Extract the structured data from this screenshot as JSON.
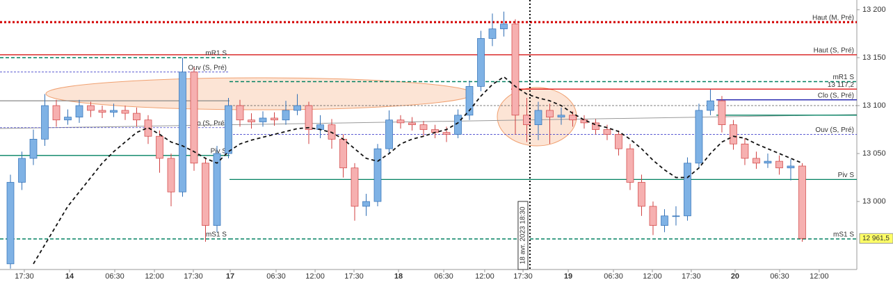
{
  "chart_data": {
    "type": "candlestick",
    "xlim": [
      -0.91,
      73.76
    ],
    "ylim": [
      12929.1,
      13210.1
    ],
    "yticks": [
      {
        "value": 13000,
        "label": "13 000"
      },
      {
        "value": 13050,
        "label": "13 050"
      },
      {
        "value": 13100,
        "label": "13 100"
      },
      {
        "value": 13150,
        "label": "13 150"
      },
      {
        "value": 13200,
        "label": "13 200"
      }
    ],
    "xticks": [
      {
        "value": 1.21,
        "label": "17:30"
      },
      {
        "value": 5.15,
        "label": "14"
      },
      {
        "value": 9.09,
        "label": "06:30"
      },
      {
        "value": 12.55,
        "label": "12:00"
      },
      {
        "value": 15.94,
        "label": "17:30"
      },
      {
        "value": 19.15,
        "label": "17"
      },
      {
        "value": 23.15,
        "label": "06:30"
      },
      {
        "value": 26.55,
        "label": "12:00"
      },
      {
        "value": 29.94,
        "label": "17:30"
      },
      {
        "value": 33.82,
        "label": "18"
      },
      {
        "value": 37.76,
        "label": "06:30"
      },
      {
        "value": 41.33,
        "label": "12:00"
      },
      {
        "value": 44.67,
        "label": "17:30"
      },
      {
        "value": 48.61,
        "label": "19"
      },
      {
        "value": 52.55,
        "label": "06:30"
      },
      {
        "value": 55.94,
        "label": "12:00"
      },
      {
        "value": 59.33,
        "label": "17:30"
      },
      {
        "value": 63.15,
        "label": "20"
      },
      {
        "value": 67.03,
        "label": "06:30"
      },
      {
        "value": 70.48,
        "label": "12:00"
      }
    ],
    "up_color": "#7fb2e5",
    "down_color": "#f6b0b0",
    "open": [
      12935,
      13020,
      13045,
      13065,
      13100,
      13085,
      13088,
      13100,
      13095,
      13093,
      13095,
      13092,
      13085,
      13068,
      13045,
      13010,
      13135,
      13040,
      12975,
      13050,
      13100,
      13085,
      13083,
      13087,
      13085,
      13095,
      13100,
      13075,
      13080,
      13065,
      13035,
      12995,
      13000,
      13055,
      13085,
      13082,
      13080,
      13075,
      13072,
      13070,
      13090,
      13120,
      13170,
      13180,
      13185,
      13090,
      13080,
      13095,
      13088,
      13090,
      13085,
      13082,
      13075,
      13070,
      13055,
      13020,
      12995,
      12975,
      12985,
      12985,
      13040,
      13095,
      13105,
      13080,
      13060,
      13045,
      13040,
      13042,
      13035,
      13037
    ],
    "high": [
      13028,
      13052,
      13075,
      13112,
      13106,
      13096,
      13106,
      13104,
      13100,
      13102,
      13100,
      13098,
      13090,
      13074,
      13050,
      13150,
      13140,
      13046,
      13058,
      13108,
      13106,
      13092,
      13094,
      13093,
      13105,
      13112,
      13104,
      13090,
      13086,
      13070,
      13040,
      13008,
      13060,
      13095,
      13090,
      13088,
      13084,
      13080,
      13078,
      13096,
      13126,
      13178,
      13196,
      13198,
      13190,
      13108,
      13104,
      13102,
      13098,
      13094,
      13090,
      13086,
      13080,
      13074,
      13060,
      13028,
      13000,
      12992,
      12995,
      13046,
      13102,
      13117,
      13110,
      13085,
      13066,
      13052,
      13050,
      13048,
      13044,
      13040
    ],
    "low": [
      12930,
      13012,
      13038,
      13058,
      13078,
      13080,
      13082,
      13088,
      13087,
      13088,
      13085,
      13078,
      13060,
      13030,
      12995,
      13005,
      13032,
      12958,
      12968,
      13045,
      13078,
      13076,
      13078,
      13079,
      13080,
      13090,
      13060,
      13066,
      13055,
      13025,
      12980,
      12985,
      12995,
      13050,
      13076,
      13074,
      13068,
      13066,
      13062,
      13066,
      13085,
      13115,
      13162,
      13172,
      13070,
      13062,
      13064,
      13060,
      13080,
      13078,
      13076,
      13070,
      13064,
      13048,
      13012,
      12985,
      12965,
      12968,
      12975,
      12980,
      13035,
      13090,
      13072,
      13054,
      13038,
      13034,
      13035,
      13028,
      13022,
      12958
    ],
    "close": [
      13020,
      13045,
      13065,
      13100,
      13085,
      13088,
      13100,
      13095,
      13093,
      13095,
      13092,
      13085,
      13068,
      13045,
      13010,
      13135,
      13040,
      12975,
      13050,
      13100,
      13085,
      13083,
      13087,
      13085,
      13095,
      13100,
      13075,
      13080,
      13065,
      13035,
      12995,
      13000,
      13055,
      13085,
      13082,
      13080,
      13075,
      13072,
      13070,
      13090,
      13120,
      13170,
      13180,
      13185,
      13090,
      13080,
      13095,
      13088,
      13090,
      13085,
      13082,
      13075,
      13070,
      13055,
      13020,
      12995,
      12975,
      12985,
      12985,
      13040,
      13095,
      13105,
      13080,
      13060,
      13045,
      13040,
      13042,
      13035,
      13037,
      12961.5
    ],
    "ma": {
      "color": "#111111",
      "values": [
        null,
        null,
        12935,
        12955,
        12975,
        12995,
        13010,
        13025,
        13040,
        13052,
        13062,
        13072,
        13077,
        13070,
        13062,
        13058,
        13052,
        13045,
        13040,
        13052,
        13060,
        13064,
        13067,
        13070,
        13073,
        13076,
        13077,
        13075,
        13072,
        13065,
        13055,
        13045,
        13042,
        13050,
        13060,
        13065,
        13068,
        13072,
        13075,
        13082,
        13095,
        13110,
        13122,
        13130,
        13120,
        13112,
        13108,
        13105,
        13100,
        13092,
        13085,
        13080,
        13077,
        13073,
        13065,
        13055,
        13043,
        13033,
        13025,
        13025,
        13035,
        13050,
        13062,
        13068,
        13066,
        13060,
        13055,
        13050,
        13045,
        13040
      ]
    },
    "levels": [
      {
        "price": 13187,
        "label": "Haut (M, Pré)",
        "color": "#d40000",
        "label_color": "#3333cc",
        "style": "dotted",
        "from": -0.91,
        "to": 73.76
      },
      {
        "price": 13153,
        "label": "Haut (S, Pré)",
        "color": "#d40000",
        "label_color": "#3333cc",
        "style": "solid",
        "from": -0.91,
        "to": 73.76
      },
      {
        "price": 13150,
        "label": "mR1 S",
        "color": "#008060",
        "label_color": "#008060",
        "style": "dashed",
        "from": -0.91,
        "to": 19.09
      },
      {
        "price": 13135,
        "label": "Ouv (S, Pré)",
        "color": "#4444cc",
        "label_color": "#3333cc",
        "style": "thin",
        "from": -0.91,
        "to": 19.09
      },
      {
        "price": 13105,
        "color": "#888888",
        "style": "solid",
        "from": -0.91,
        "to": 19.09
      },
      {
        "price": 13125,
        "label": "mR1 S",
        "color": "#008060",
        "label_color": "#008060",
        "style": "dashed",
        "from": 19.09,
        "to": 73.76
      },
      {
        "price": 13117.2,
        "label": "13 117,2",
        "color": "#e00000",
        "label_color": "#e00000",
        "style": "solid",
        "from": 43.64,
        "to": 73.76
      },
      {
        "price": 13106,
        "label": "Clo (S, Pré)",
        "color": "#0000a0",
        "label_color": "#3333cc",
        "style": "solid",
        "from": 61.52,
        "to": 73.76
      },
      {
        "price": 13100,
        "color": "#555555",
        "style": "thin",
        "from": 19.09,
        "to": 73.76
      },
      {
        "price": 13090,
        "color": "#008060",
        "style": "solid",
        "from": 61.52,
        "to": 73.76
      },
      {
        "price": 13077,
        "label": "Clo (S, Pré)",
        "color": "#4444cc",
        "label_color": "#3333cc",
        "style": "thin",
        "from": -0.91,
        "to": 19.09
      },
      {
        "price": 13070,
        "label": "Ouv (S, Pré)",
        "color": "#4444cc",
        "label_color": "#3333cc",
        "style": "thin",
        "from": 19.09,
        "to": 73.76
      },
      {
        "price": 13048,
        "label": "Piv S",
        "color": "#008060",
        "label_color": "#008060",
        "style": "solid",
        "from": -0.91,
        "to": 19.09
      },
      {
        "price": 13023,
        "label": "Piv S",
        "color": "#008060",
        "label_color": "#008060",
        "style": "solid",
        "from": 19.09,
        "to": 73.76
      },
      {
        "price": 12961,
        "label": "mS1 S",
        "color": "#008060",
        "label_color": "#008060",
        "style": "dashed",
        "from": -0.91,
        "to": 19.09
      },
      {
        "price": 12961,
        "label": "mS1 S",
        "color": "#008060",
        "label_color": "#008060",
        "style": "dashed",
        "from": 19.09,
        "to": 73.76
      }
    ],
    "crosshair": {
      "x": 45.27,
      "label": "18 avr. 2023 18:30"
    },
    "last_price": {
      "value": 12961.5,
      "label": "12 961,5",
      "color": "#ffff66"
    }
  }
}
